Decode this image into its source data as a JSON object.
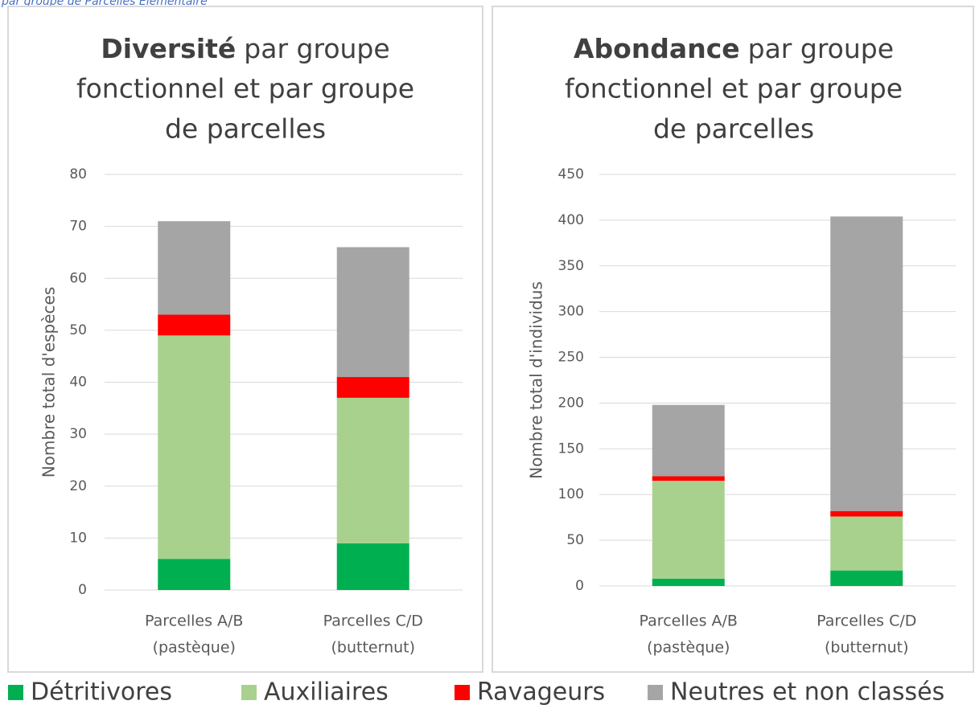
{
  "note": "par groupe de Parcelles Elémentaire",
  "chart_data": [
    {
      "type": "bar",
      "stacked": true,
      "title_bold": "Diversité",
      "title_lines": [
        "par groupe",
        "fonctionnel et par groupe",
        "de parcelles"
      ],
      "y_label": "Nombre total d'espèces",
      "categories": [
        [
          "Parcelles A/B",
          "(pastèque)"
        ],
        [
          "Parcelles C/D",
          "(butternut)"
        ]
      ],
      "series": [
        {
          "name": "Détritivores",
          "color": "#00b050",
          "values": [
            6,
            9
          ]
        },
        {
          "name": "Auxiliaires",
          "color": "#a9d18e",
          "values": [
            43,
            28
          ]
        },
        {
          "name": "Ravageurs",
          "color": "#ff0000",
          "values": [
            4,
            4
          ]
        },
        {
          "name": "Neutres et non classés",
          "color": "#a5a5a5",
          "values": [
            18,
            25
          ]
        }
      ],
      "ylim": [
        0,
        80
      ],
      "yticks": [
        0,
        10,
        20,
        30,
        40,
        50,
        60,
        70,
        80
      ],
      "grid": true
    },
    {
      "type": "bar",
      "stacked": true,
      "title_bold": "Abondance",
      "title_lines": [
        "par groupe",
        "fonctionnel et par groupe",
        "de parcelles"
      ],
      "y_label": "Nombre total d'individus",
      "categories": [
        [
          "Parcelles A/B",
          "(pastèque)"
        ],
        [
          "Parcelles C/D",
          "(butternut)"
        ]
      ],
      "series": [
        {
          "name": "Détritivores",
          "color": "#00b050",
          "values": [
            8,
            17
          ]
        },
        {
          "name": "Auxiliaires",
          "color": "#a9d18e",
          "values": [
            107,
            59
          ]
        },
        {
          "name": "Ravageurs",
          "color": "#ff0000",
          "values": [
            5,
            6
          ]
        },
        {
          "name": "Neutres et non classés",
          "color": "#a5a5a5",
          "values": [
            78,
            322
          ]
        }
      ],
      "ylim": [
        0,
        450
      ],
      "yticks": [
        0,
        50,
        100,
        150,
        200,
        250,
        300,
        350,
        400,
        450
      ],
      "grid": true
    }
  ]
}
